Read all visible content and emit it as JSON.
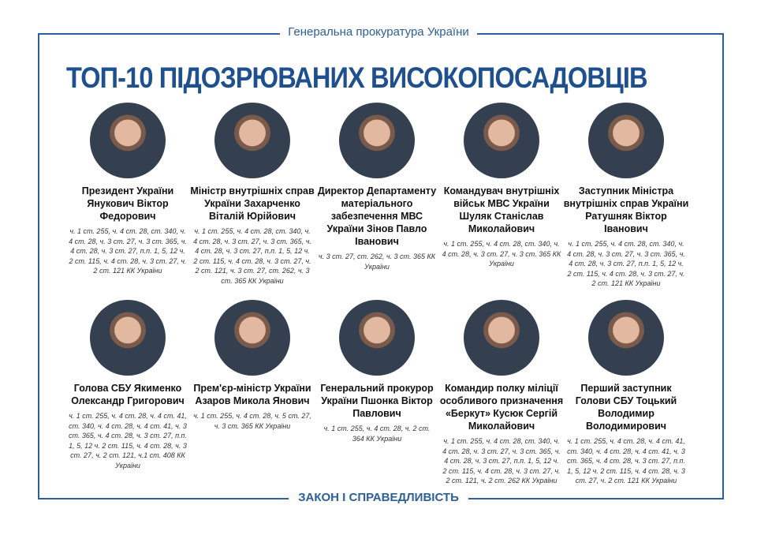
{
  "header": {
    "organization": "Генеральна прокуратура України",
    "title": "ТОП-10 ПІДОЗРЮВАНИХ ВИСОКОПОСАДОВЦІВ"
  },
  "footer": {
    "slogan": "ЗАКОН І СПРАВЕДЛИВІСТЬ"
  },
  "colors": {
    "accent": "#2d5f9a",
    "title": "#1e4f8e"
  },
  "people": [
    {
      "name": "Президент України Янукович Віктор Федорович",
      "charges": "ч. 1 ст. 255, ч. 4 ст. 28, ст. 340, ч. 4 ст. 28, ч. 3 ст. 27, ч. 3 ст. 365, ч. 4 ст. 28, ч. 3 ст. 27, п.п. 1, 5, 12 ч. 2 ст. 115, ч. 4 ст. 28, ч. 3 ст. 27, ч. 2 ст. 121 КК України"
    },
    {
      "name": "Міністр внутрішніх справ України Захарченко Віталій Юрійович",
      "charges": "ч. 1 ст. 255, ч. 4 ст. 28, ст. 340, ч. 4 ст. 28, ч. 3 ст. 27, ч. 3 ст. 365, ч. 4 ст. 28, ч. 3 ст. 27, п.п. 1, 5, 12 ч. 2 ст. 115, ч. 4 ст. 28, ч. 3 ст. 27, ч. 2 ст. 121, ч. 3 ст. 27, ст. 262, ч. 3 ст. 365 КК України"
    },
    {
      "name": "Директор Департаменту матеріального забезпечення МВС України Зінов Павло Іванович",
      "charges": "ч. 3 ст. 27, ст. 262, ч. 3 ст. 365 КК України"
    },
    {
      "name": "Командувач внутрішніх військ МВС України Шуляк Станіслав Миколайович",
      "charges": "ч. 1 ст. 255, ч. 4 ст. 28, ст. 340, ч. 4 ст. 28, ч. 3 ст. 27, ч. 3 ст. 365 КК України"
    },
    {
      "name": "Заступник Міністра внутрішніх справ України Ратушняк Віктор Іванович",
      "charges": "ч. 1 ст. 255, ч. 4 ст. 28, ст. 340, ч. 4 ст. 28, ч. 3 ст. 27, ч. 3 ст. 365, ч. 4 ст. 28, ч. 3 ст. 27, п.п. 1, 5, 12 ч. 2 ст. 115, ч. 4 ст. 28, ч. 3 ст. 27, ч. 2 ст. 121 КК України"
    },
    {
      "name": "Голова СБУ Якименко Олександр Григорович",
      "charges": "ч. 1 ст. 255, ч. 4 ст. 28, ч. 4 ст. 41, ст. 340, ч. 4 ст. 28, ч. 4 ст. 41, ч. 3 ст. 365, ч. 4 ст. 28, ч. 3 ст. 27, п.п. 1, 5, 12 ч. 2 ст. 115, ч. 4 ст. 28, ч. 3 ст. 27, ч. 2 ст. 121, ч.1 ст. 408 КК України"
    },
    {
      "name": "Прем'єр-міністр України Азаров Микола Янович",
      "charges": "ч. 1 ст. 255, ч. 4 ст. 28, ч. 5 ст. 27, ч. 3 ст. 365 КК України"
    },
    {
      "name": "Генеральний прокурор України Пшонка Віктор Павлович",
      "charges": "ч. 1 ст. 255, ч. 4 ст. 28, ч. 2 ст. 364 КК України"
    },
    {
      "name": "Командир полку міліції особливого призначення «Беркут» Кусюк Сергій Миколайович",
      "charges": "ч. 1 ст. 255, ч. 4 ст. 28, ст. 340, ч. 4 ст. 28, ч. 3 ст. 27, ч. 3 ст. 365, ч. 4 ст. 28, ч. 3 ст. 27, п.п. 1, 5, 12 ч. 2 ст. 115, ч. 4 ст. 28, ч. 3 ст. 27, ч. 2 ст. 121, ч. 2 ст. 262 КК України"
    },
    {
      "name": "Перший заступник Голови СБУ Тоцький Володимир Володимирович",
      "charges": "ч. 1 ст. 255, ч. 4 ст. 28, ч. 4 ст. 41, ст. 340, ч. 4 ст. 28, ч. 4 ст. 41, ч. 3 ст. 365, ч. 4 ст. 28, ч. 3 ст. 27, п.п. 1, 5, 12 ч. 2 ст. 115, ч. 4 ст. 28, ч. 3 ст. 27, ч. 2 ст. 121 КК України"
    }
  ]
}
